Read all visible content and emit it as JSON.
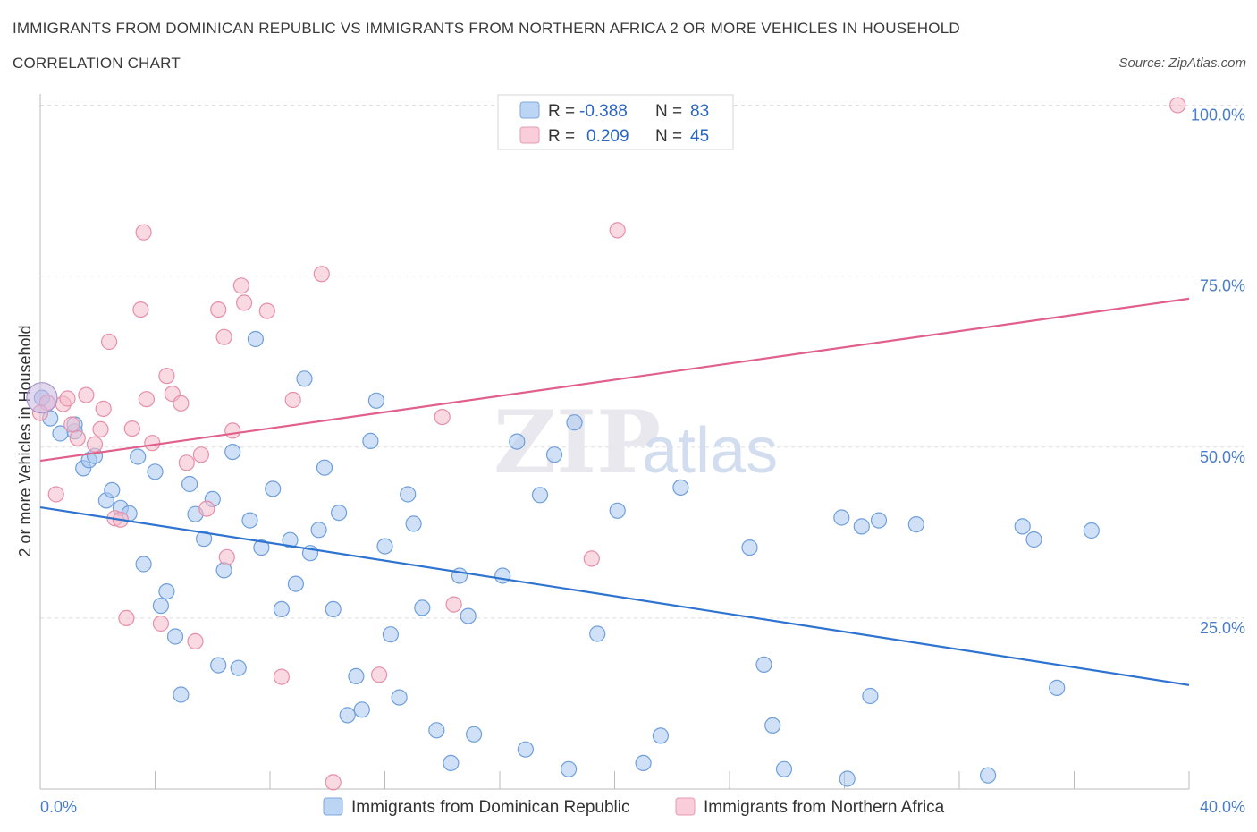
{
  "header": {
    "title": "IMMIGRANTS FROM DOMINICAN REPUBLIC VS IMMIGRANTS FROM NORTHERN AFRICA 2 OR MORE VEHICLES IN HOUSEHOLD",
    "subtitle": "CORRELATION CHART",
    "source": "Source: ZipAtlas.com"
  },
  "watermark": {
    "zip": "ZIP",
    "atlas": "atlas"
  },
  "legend": {
    "series1": {
      "r_label": "R = ",
      "r_value": "-0.388",
      "n_label": "N = ",
      "n_value": "83"
    },
    "series2": {
      "r_label": "R = ",
      "r_value": "0.209",
      "n_label": "N = ",
      "n_value": "45"
    }
  },
  "chart_data": {
    "type": "scatter",
    "title": "IMMIGRANTS FROM DOMINICAN REPUBLIC VS IMMIGRANTS FROM NORTHERN AFRICA 2 OR MORE VEHICLES IN HOUSEHOLD",
    "xlabel": "",
    "ylabel": "2 or more Vehicles in Household",
    "xlim": [
      0,
      40
    ],
    "ylim": [
      0,
      101
    ],
    "x_tick_labels": [
      "0.0%",
      "40.0%"
    ],
    "y_ticks": [
      25,
      50,
      75,
      100
    ],
    "y_tick_labels": [
      "25.0%",
      "50.0%",
      "75.0%",
      "100.0%"
    ],
    "grid": true,
    "colors": {
      "series1_fill": "#a9c8f0",
      "series1_stroke": "#6f9fdc",
      "series1_line": "#2f73d0",
      "series2_fill": "#f5bccb",
      "series2_stroke": "#e68fa8",
      "series2_line": "#e0608a"
    },
    "series": [
      {
        "name": "Immigrants from Dominican Republic",
        "R": -0.388,
        "N": 83,
        "trend": {
          "x": [
            0,
            40
          ],
          "y": [
            41.2,
            15.2
          ]
        },
        "points": [
          [
            0.06,
            57.2
          ],
          [
            0.35,
            54.2
          ],
          [
            0.7,
            52.0
          ],
          [
            1.2,
            52.3
          ],
          [
            1.2,
            53.3
          ],
          [
            1.5,
            46.9
          ],
          [
            1.7,
            48.1
          ],
          [
            1.9,
            48.7
          ],
          [
            2.3,
            42.2
          ],
          [
            2.5,
            43.7
          ],
          [
            2.8,
            41.1
          ],
          [
            3.1,
            40.3
          ],
          [
            3.4,
            48.6
          ],
          [
            3.6,
            32.9
          ],
          [
            4.0,
            46.4
          ],
          [
            4.2,
            26.8
          ],
          [
            4.4,
            28.9
          ],
          [
            4.7,
            22.3
          ],
          [
            4.9,
            13.8
          ],
          [
            5.2,
            44.6
          ],
          [
            5.4,
            40.2
          ],
          [
            5.7,
            36.6
          ],
          [
            6.0,
            42.4
          ],
          [
            6.2,
            18.1
          ],
          [
            6.4,
            32.0
          ],
          [
            6.7,
            49.3
          ],
          [
            6.9,
            17.7
          ],
          [
            7.3,
            39.3
          ],
          [
            7.5,
            65.8
          ],
          [
            7.7,
            35.3
          ],
          [
            8.1,
            43.9
          ],
          [
            8.4,
            26.3
          ],
          [
            8.7,
            36.4
          ],
          [
            8.9,
            30.0
          ],
          [
            9.2,
            60.0
          ],
          [
            9.4,
            34.5
          ],
          [
            9.7,
            37.9
          ],
          [
            9.9,
            47.0
          ],
          [
            10.2,
            26.3
          ],
          [
            10.4,
            40.4
          ],
          [
            10.7,
            10.8
          ],
          [
            11.0,
            16.5
          ],
          [
            11.2,
            11.6
          ],
          [
            11.5,
            50.9
          ],
          [
            11.7,
            56.8
          ],
          [
            12.0,
            35.5
          ],
          [
            12.2,
            22.6
          ],
          [
            12.5,
            13.4
          ],
          [
            12.8,
            43.1
          ],
          [
            13.0,
            38.8
          ],
          [
            13.3,
            26.5
          ],
          [
            13.8,
            8.6
          ],
          [
            14.3,
            3.8
          ],
          [
            14.6,
            31.2
          ],
          [
            14.9,
            25.3
          ],
          [
            15.1,
            8.0
          ],
          [
            16.1,
            31.2
          ],
          [
            16.6,
            50.8
          ],
          [
            16.9,
            5.8
          ],
          [
            17.4,
            43.0
          ],
          [
            17.9,
            48.9
          ],
          [
            18.4,
            2.9
          ],
          [
            18.6,
            53.6
          ],
          [
            19.4,
            22.7
          ],
          [
            20.1,
            40.7
          ],
          [
            21.0,
            3.8
          ],
          [
            21.6,
            7.8
          ],
          [
            22.3,
            44.1
          ],
          [
            24.7,
            35.3
          ],
          [
            25.2,
            18.2
          ],
          [
            25.5,
            9.3
          ],
          [
            25.9,
            2.9
          ],
          [
            27.9,
            39.7
          ],
          [
            28.1,
            1.5
          ],
          [
            28.6,
            38.4
          ],
          [
            28.9,
            13.6
          ],
          [
            29.2,
            39.3
          ],
          [
            30.5,
            38.7
          ],
          [
            33.0,
            2.0
          ],
          [
            34.2,
            38.4
          ],
          [
            34.6,
            36.5
          ],
          [
            35.4,
            14.8
          ],
          [
            36.6,
            37.8
          ]
        ]
      },
      {
        "name": "Immigrants from Northern Africa",
        "R": 0.209,
        "N": 45,
        "trend": {
          "x": [
            0,
            40
          ],
          "y": [
            48.0,
            71.7
          ]
        },
        "points": [
          [
            0.25,
            56.5
          ],
          [
            0.55,
            43.1
          ],
          [
            0.8,
            56.3
          ],
          [
            0.95,
            57.1
          ],
          [
            1.1,
            53.3
          ],
          [
            1.3,
            51.3
          ],
          [
            1.6,
            57.6
          ],
          [
            1.9,
            50.4
          ],
          [
            2.1,
            52.6
          ],
          [
            2.2,
            55.6
          ],
          [
            2.4,
            65.4
          ],
          [
            2.6,
            39.6
          ],
          [
            2.8,
            39.4
          ],
          [
            3.0,
            25.0
          ],
          [
            3.2,
            52.7
          ],
          [
            3.5,
            70.1
          ],
          [
            3.6,
            81.4
          ],
          [
            3.7,
            57.0
          ],
          [
            3.9,
            50.6
          ],
          [
            4.2,
            24.2
          ],
          [
            4.4,
            60.4
          ],
          [
            4.6,
            57.8
          ],
          [
            4.9,
            56.4
          ],
          [
            5.1,
            47.7
          ],
          [
            5.4,
            21.6
          ],
          [
            5.6,
            48.9
          ],
          [
            5.8,
            41.0
          ],
          [
            6.2,
            70.1
          ],
          [
            6.4,
            66.1
          ],
          [
            6.5,
            33.9
          ],
          [
            6.7,
            52.4
          ],
          [
            7.0,
            73.6
          ],
          [
            7.1,
            71.1
          ],
          [
            7.9,
            69.9
          ],
          [
            8.4,
            16.4
          ],
          [
            8.8,
            56.9
          ],
          [
            9.8,
            75.3
          ],
          [
            10.2,
            1.0
          ],
          [
            11.8,
            16.7
          ],
          [
            14.0,
            54.4
          ],
          [
            14.4,
            27.0
          ],
          [
            19.2,
            33.7
          ],
          [
            20.1,
            81.7
          ],
          [
            39.6,
            100.0
          ],
          [
            0.0,
            55.0
          ]
        ]
      }
    ]
  }
}
